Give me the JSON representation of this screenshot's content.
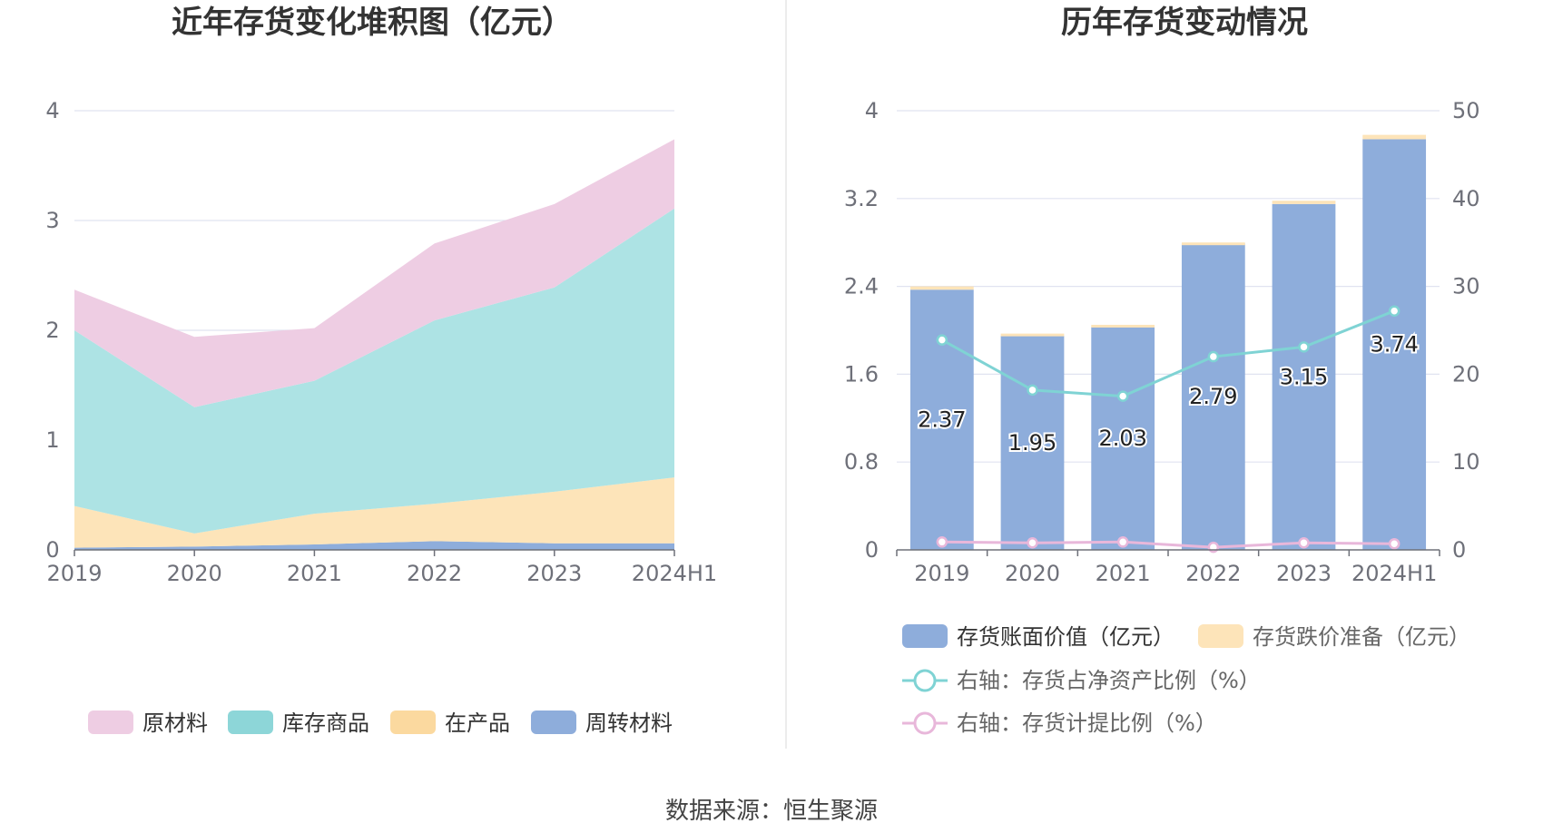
{
  "left_chart": {
    "title": "近年存货变化堆积图（亿元）",
    "legend": [
      "原材料",
      "库存商品",
      "在产品",
      "周转材料"
    ]
  },
  "right_chart": {
    "title": "历年存货变动情况",
    "legend": [
      "存货账面价值（亿元）",
      "存货跌价准备（亿元）",
      "右轴：存货占净资产比例（%）",
      "右轴：存货计提比例（%）"
    ]
  },
  "footer": "数据来源：恒生聚源",
  "colors": {
    "raw_material": "#eecde3",
    "inventory_goods": "#ade3e4",
    "wip": "#fde4b9",
    "turnover": "#8eaddb",
    "bar_book": "#8eaddb",
    "bar_provision": "#fde4b9",
    "line_ratio": "#7fd3d4",
    "line_provision": "#e8b7da",
    "grid": "#e0e3f0",
    "axis": "#6e7079"
  },
  "chart_data": [
    {
      "type": "area",
      "stacked": true,
      "title": "近年存货变化堆积图（亿元）",
      "categories": [
        "2019",
        "2020",
        "2021",
        "2022",
        "2023",
        "2024H1"
      ],
      "ylim": [
        0,
        4
      ],
      "yticks": [
        "0",
        "1",
        "2",
        "3",
        "4"
      ],
      "grid": true,
      "legend_position": "bottom",
      "series": [
        {
          "name": "周转材料",
          "values": [
            0.02,
            0.03,
            0.05,
            0.08,
            0.06,
            0.06
          ]
        },
        {
          "name": "在产品",
          "values": [
            0.38,
            0.12,
            0.28,
            0.34,
            0.47,
            0.6
          ]
        },
        {
          "name": "库存商品",
          "values": [
            1.6,
            1.15,
            1.21,
            1.67,
            1.86,
            2.45
          ]
        },
        {
          "name": "原材料",
          "values": [
            0.37,
            0.64,
            0.48,
            0.7,
            0.76,
            0.63
          ]
        }
      ]
    },
    {
      "type": "bar",
      "stacked": true,
      "title": "历年存货变动情况",
      "categories": [
        "2019",
        "2020",
        "2021",
        "2022",
        "2023",
        "2024H1"
      ],
      "ylim": [
        0,
        4
      ],
      "yticks": [
        "0",
        "0.8",
        "1.6",
        "2.4",
        "3.2",
        "4"
      ],
      "y2lim": [
        0,
        50
      ],
      "y2ticks": [
        "0",
        "10",
        "20",
        "30",
        "40",
        "50"
      ],
      "grid": true,
      "legend_position": "bottom",
      "series": [
        {
          "name": "存货账面价值（亿元）",
          "values": [
            2.37,
            1.95,
            2.03,
            2.79,
            3.15,
            3.74
          ],
          "labels": [
            "2.37",
            "1.95",
            "2.03",
            "2.79",
            "3.15",
            "3.74"
          ]
        },
        {
          "name": "存货跌价准备（亿元）",
          "values": [
            0.03,
            0.02,
            0.02,
            0.01,
            0.03,
            0.04
          ]
        }
      ],
      "line_series": [
        {
          "name": "右轴：存货占净资产比例（%）",
          "axis": "right",
          "values": [
            23.9,
            18.2,
            17.5,
            22.0,
            23.1,
            27.2
          ]
        },
        {
          "name": "右轴：存货计提比例（%）",
          "axis": "right",
          "values": [
            0.9,
            0.8,
            0.9,
            0.3,
            0.8,
            0.7
          ]
        }
      ]
    }
  ]
}
